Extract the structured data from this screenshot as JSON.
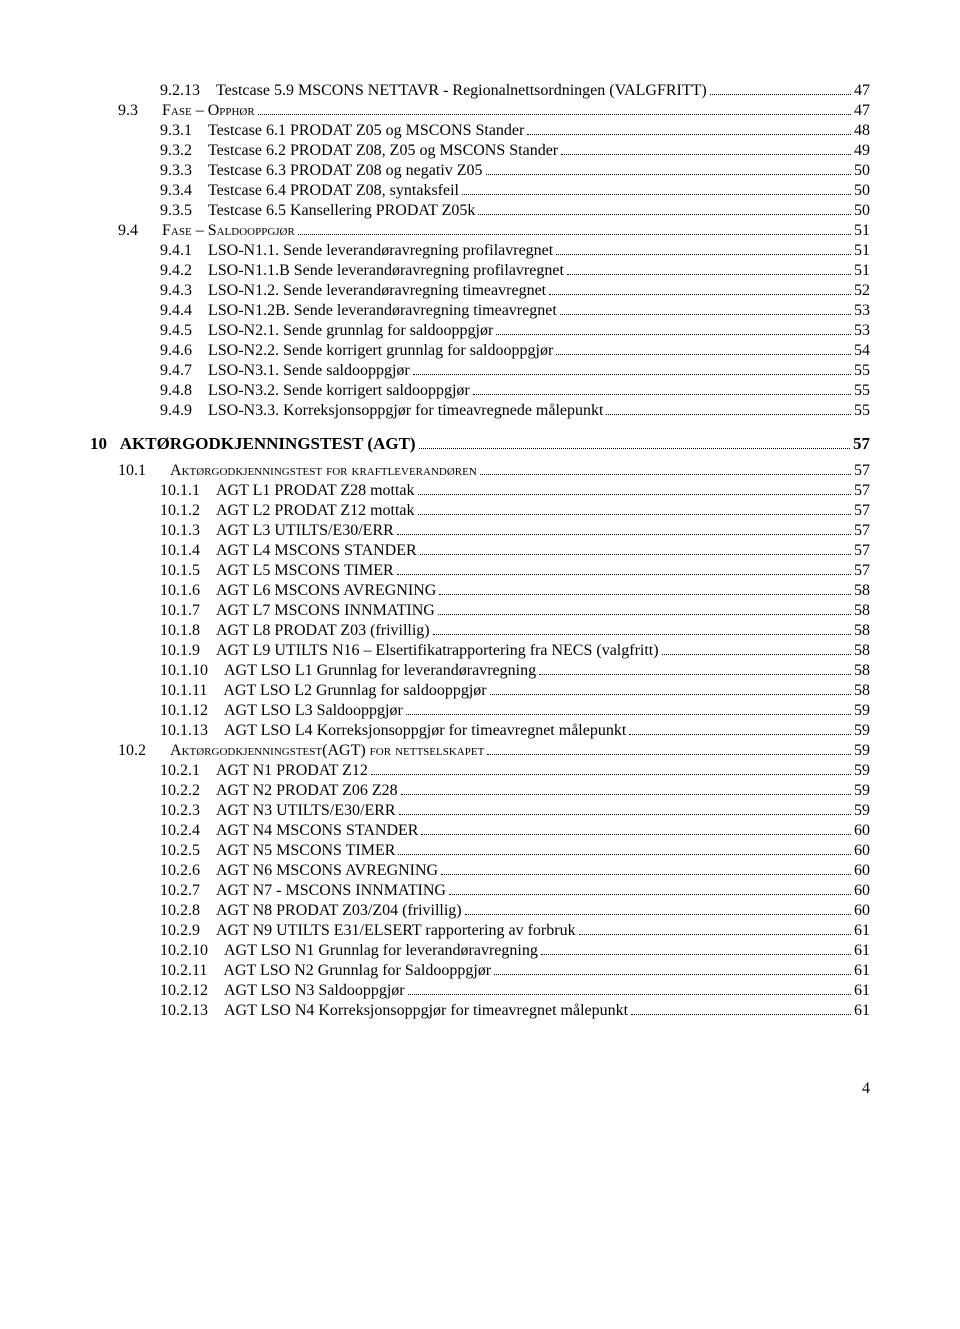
{
  "toc": [
    {
      "indent": 2,
      "bold": false,
      "num": "9.2.13",
      "label": "Testcase 5.9 MSCONS NETTAVR - Regionalnettsordningen (VALGFRITT)",
      "page": "47"
    },
    {
      "indent": 1,
      "bold": false,
      "num": "9.3",
      "label": "F<span class='sc'>ase</span> – O<span class='sc'>pphør</span>",
      "page": "47"
    },
    {
      "indent": 2,
      "bold": false,
      "num": "9.3.1",
      "label": "Testcase 6.1 PRODAT Z05 og MSCONS Stander",
      "page": "48"
    },
    {
      "indent": 2,
      "bold": false,
      "num": "9.3.2",
      "label": "Testcase 6.2 PRODAT Z08, Z05 og MSCONS Stander",
      "page": "49"
    },
    {
      "indent": 2,
      "bold": false,
      "num": "9.3.3",
      "label": "Testcase 6.3 PRODAT Z08 og negativ Z05",
      "page": "50"
    },
    {
      "indent": 2,
      "bold": false,
      "num": "9.3.4",
      "label": "Testcase 6.4 PRODAT Z08, syntaksfeil",
      "page": "50"
    },
    {
      "indent": 2,
      "bold": false,
      "num": "9.3.5",
      "label": "Testcase 6.5 Kansellering PRODAT Z05k",
      "page": "50"
    },
    {
      "indent": 1,
      "bold": false,
      "num": "9.4",
      "label": "F<span class='sc'>ase</span> – S<span class='sc'>aldooppgjør</span>",
      "page": "51"
    },
    {
      "indent": 2,
      "bold": false,
      "num": "9.4.1",
      "label": "LSO-N1.1. Sende leverandøravregning profilavregnet",
      "page": "51"
    },
    {
      "indent": 2,
      "bold": false,
      "num": "9.4.2",
      "label": "LSO-N1.1.B Sende leverandøravregning profilavregnet",
      "page": "51"
    },
    {
      "indent": 2,
      "bold": false,
      "num": "9.4.3",
      "label": "LSO-N1.2. Sende leverandøravregning timeavregnet",
      "page": "52"
    },
    {
      "indent": 2,
      "bold": false,
      "num": "9.4.4",
      "label": "LSO-N1.2B. Sende leverandøravregning timeavregnet",
      "page": "53"
    },
    {
      "indent": 2,
      "bold": false,
      "num": "9.4.5",
      "label": "LSO-N2.1. Sende grunnlag for saldooppgjør",
      "page": "53"
    },
    {
      "indent": 2,
      "bold": false,
      "num": "9.4.6",
      "label": "LSO-N2.2. Sende korrigert grunnlag for saldooppgjør",
      "page": "54"
    },
    {
      "indent": 2,
      "bold": false,
      "num": "9.4.7",
      "label": "LSO-N3.1. Sende saldooppgjør",
      "page": "55"
    },
    {
      "indent": 2,
      "bold": false,
      "num": "9.4.8",
      "label": "LSO-N3.2. Sende korrigert saldooppgjør",
      "page": "55"
    },
    {
      "indent": 2,
      "bold": false,
      "num": "9.4.9",
      "label": "LSO-N3.3. Korreksjonsoppgjør for timeavregnede målepunkt",
      "page": "55"
    },
    {
      "indent": 0,
      "bold": true,
      "num": "10",
      "label": "AKTØRGODKJENNINGSTEST (AGT)",
      "page": "57",
      "cls": "heading10"
    },
    {
      "indent": 1,
      "bold": false,
      "num": "10.1",
      "label": "A<span class='sc'>ktørgodkjenningstest for kraftleverandøren</span>",
      "page": "57"
    },
    {
      "indent": 2,
      "bold": false,
      "num": "10.1.1",
      "label": "AGT L1 PRODAT Z28 mottak",
      "page": "57"
    },
    {
      "indent": 2,
      "bold": false,
      "num": "10.1.2",
      "label": "AGT L2 PRODAT Z12 mottak",
      "page": "57"
    },
    {
      "indent": 2,
      "bold": false,
      "num": "10.1.3",
      "label": "AGT L3 UTILTS/E30/ERR",
      "page": "57"
    },
    {
      "indent": 2,
      "bold": false,
      "num": "10.1.4",
      "label": "AGT L4 MSCONS STANDER",
      "page": "57"
    },
    {
      "indent": 2,
      "bold": false,
      "num": "10.1.5",
      "label": "AGT L5 MSCONS TIMER",
      "page": "57"
    },
    {
      "indent": 2,
      "bold": false,
      "num": "10.1.6",
      "label": "AGT L6 MSCONS AVREGNING",
      "page": "58"
    },
    {
      "indent": 2,
      "bold": false,
      "num": "10.1.7",
      "label": "AGT L7 MSCONS INNMATING",
      "page": "58"
    },
    {
      "indent": 2,
      "bold": false,
      "num": "10.1.8",
      "label": "AGT L8 PRODAT Z03 (frivillig)",
      "page": "58"
    },
    {
      "indent": 2,
      "bold": false,
      "num": "10.1.9",
      "label": "AGT L9 UTILTS N16 – Elsertifikatrapportering fra NECS (valgfritt)",
      "page": "58"
    },
    {
      "indent": 2,
      "bold": false,
      "num": "10.1.10",
      "label": "AGT LSO  L1 Grunnlag for leverandøravregning",
      "page": "58"
    },
    {
      "indent": 2,
      "bold": false,
      "num": "10.1.11",
      "label": "AGT LSO L2 Grunnlag for saldooppgjør",
      "page": "58"
    },
    {
      "indent": 2,
      "bold": false,
      "num": "10.1.12",
      "label": "AGT LSO L3 Saldooppgjør",
      "page": "59"
    },
    {
      "indent": 2,
      "bold": false,
      "num": "10.1.13",
      "label": "AGT LSO L4 Korreksjonsoppgjør for timeavregnet målepunkt",
      "page": "59"
    },
    {
      "indent": 1,
      "bold": false,
      "num": "10.2",
      "label": "A<span class='sc'>ktørgodkjenningstest</span>(AGT) <span class='sc'>for nettselskapet</span>",
      "page": "59"
    },
    {
      "indent": 2,
      "bold": false,
      "num": "10.2.1",
      "label": "AGT N1 PRODAT Z12",
      "page": "59"
    },
    {
      "indent": 2,
      "bold": false,
      "num": "10.2.2",
      "label": "AGT N2 PRODAT Z06 Z28",
      "page": "59"
    },
    {
      "indent": 2,
      "bold": false,
      "num": "10.2.3",
      "label": "AGT N3 UTILTS/E30/ERR",
      "page": "59"
    },
    {
      "indent": 2,
      "bold": false,
      "num": "10.2.4",
      "label": "AGT N4 MSCONS STANDER",
      "page": "60"
    },
    {
      "indent": 2,
      "bold": false,
      "num": "10.2.5",
      "label": "AGT N5 MSCONS TIMER",
      "page": "60"
    },
    {
      "indent": 2,
      "bold": false,
      "num": "10.2.6",
      "label": "AGT N6 MSCONS AVREGNING",
      "page": "60"
    },
    {
      "indent": 2,
      "bold": false,
      "num": "10.2.7",
      "label": "AGT N7 -  MSCONS INNMATING",
      "page": "60"
    },
    {
      "indent": 2,
      "bold": false,
      "num": "10.2.8",
      "label": "AGT N8 PRODAT Z03/Z04 (frivillig)",
      "page": "60"
    },
    {
      "indent": 2,
      "bold": false,
      "num": "10.2.9",
      "label": "AGT N9 UTILTS E31/ELSERT rapportering av forbruk",
      "page": "61"
    },
    {
      "indent": 2,
      "bold": false,
      "num": "10.2.10",
      "label": "AGT LSO N1 Grunnlag for leverandøravregning",
      "page": "61"
    },
    {
      "indent": 2,
      "bold": false,
      "num": "10.2.11",
      "label": "AGT LSO  N2 Grunnlag for Saldooppgjør",
      "page": "61"
    },
    {
      "indent": 2,
      "bold": false,
      "num": "10.2.12",
      "label": "AGT LSO  N3 Saldooppgjør",
      "page": "61"
    },
    {
      "indent": 2,
      "bold": false,
      "num": "10.2.13",
      "label": "AGT LSO N4 Korreksjonsoppgjør for timeavregnet målepunkt",
      "page": "61"
    }
  ],
  "page_number": "4"
}
